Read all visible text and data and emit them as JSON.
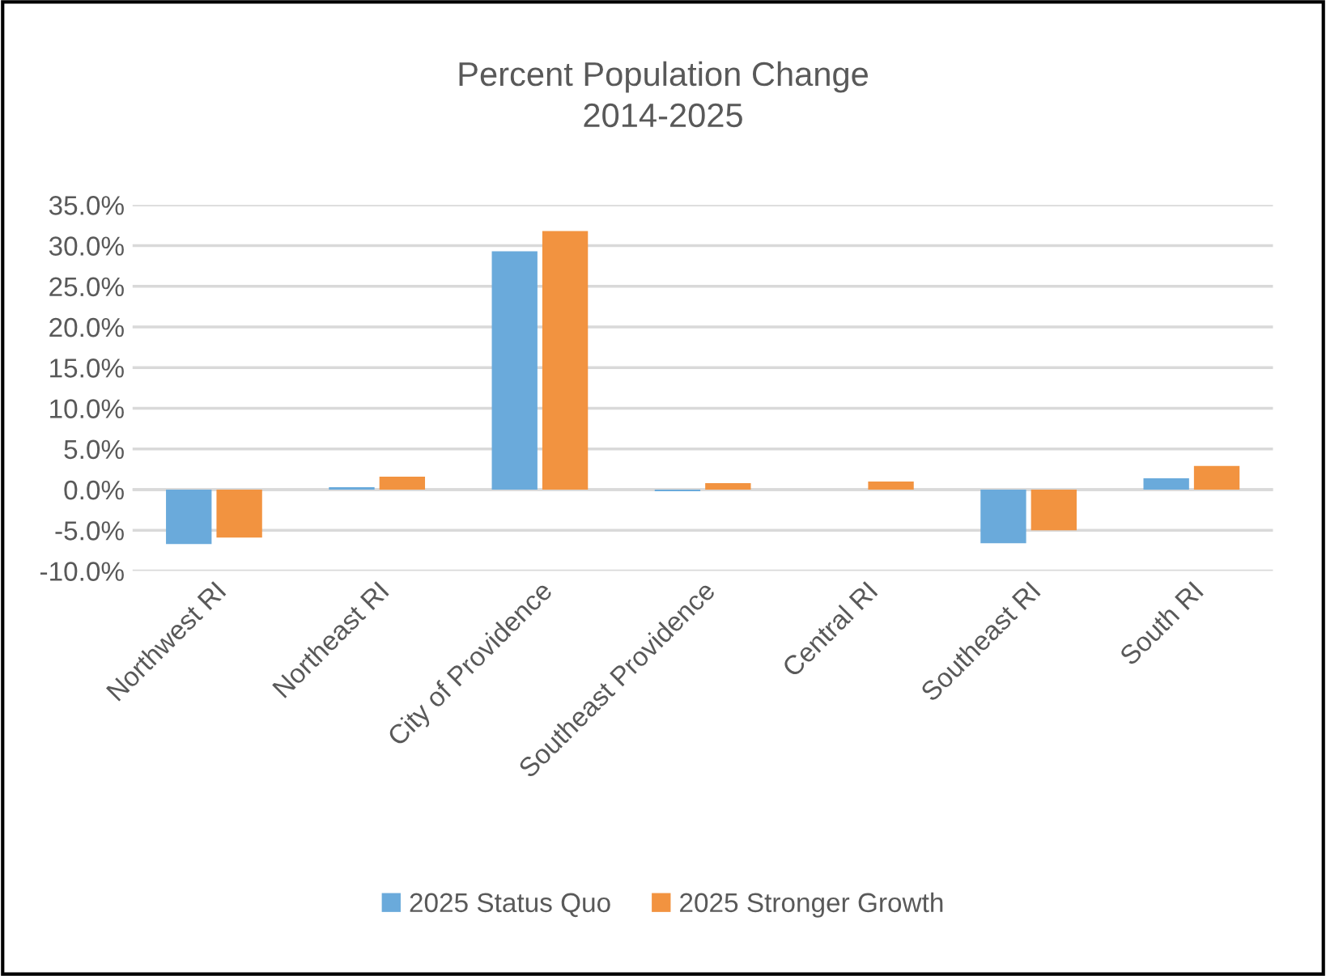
{
  "chart_data": {
    "type": "bar",
    "title": "Percent Population Change\n2014-2025",
    "categories": [
      "Northwest RI",
      "Northeast RI",
      "City of Providence",
      "Southeast Providence",
      "Central RI",
      "Southeast RI",
      "South RI"
    ],
    "series": [
      {
        "name": "2025 Status Quo",
        "color": "#6aaadb",
        "values": [
          -6.7,
          0.3,
          29.3,
          -0.2,
          0,
          -6.6,
          1.4
        ]
      },
      {
        "name": "2025 Stronger Growth",
        "color": "#f29340",
        "values": [
          -5.9,
          1.6,
          31.8,
          0.8,
          1.0,
          -5.0,
          2.9
        ]
      }
    ],
    "ylim": [
      -10,
      35
    ],
    "yticks": [
      {
        "value": -10,
        "label": "-10.0%"
      },
      {
        "value": -5,
        "label": "-5.0%"
      },
      {
        "value": 0,
        "label": "0.0%"
      },
      {
        "value": 5,
        "label": "5.0%"
      },
      {
        "value": 10,
        "label": "10.0%"
      },
      {
        "value": 15,
        "label": "15.0%"
      },
      {
        "value": 20,
        "label": "20.0%"
      },
      {
        "value": 25,
        "label": "25.0%"
      },
      {
        "value": 30,
        "label": "30.0%"
      },
      {
        "value": 35,
        "label": "35.0%"
      }
    ],
    "grid": "y",
    "legend": "bottom"
  }
}
